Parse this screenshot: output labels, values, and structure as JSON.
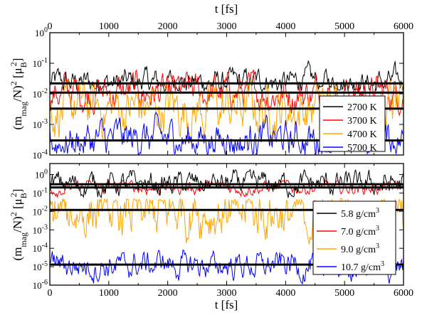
{
  "chart_data": [
    {
      "type": "line",
      "x_top_label": "t [fs]",
      "ylabel_parts": {
        "a": "(m",
        "a_sub": "mag",
        "b": "/N)",
        "b_sup": "2",
        "c": " [μ",
        "c_sub": "B",
        "c_sup": "2",
        "d": "]"
      },
      "xlim": [
        0,
        6000
      ],
      "x_ticks": [
        "0",
        "1000",
        "2000",
        "3000",
        "4000",
        "5000",
        "6000"
      ],
      "y_scale": "log",
      "ylim_exp": [
        -4,
        0
      ],
      "y_ticks": [
        {
          "base": "10",
          "exp": "-4"
        },
        {
          "base": "10",
          "exp": "-3"
        },
        {
          "base": "10",
          "exp": "-2"
        },
        {
          "base": "10",
          "exp": "-1"
        },
        {
          "base": "10",
          "exp": "0"
        }
      ],
      "legend_position": "right",
      "series": [
        {
          "name": "2700 K",
          "color": "#000000",
          "mean": 0.022,
          "noise_low": 0.012,
          "noise_high": 0.15,
          "draw_order": 1
        },
        {
          "name": "3700 K",
          "color": "#ff0000",
          "mean": 0.011,
          "noise_low": 0.002,
          "noise_high": 0.06,
          "draw_order": 2
        },
        {
          "name": "4700 K",
          "color": "#ffa500",
          "mean": 0.0033,
          "noise_low": 0.0002,
          "noise_high": 0.03,
          "draw_order": 3
        },
        {
          "name": "5700 K",
          "color": "#0000ff",
          "mean": 0.0003,
          "noise_low": 0.0001,
          "noise_high": 0.004,
          "draw_order": 4
        }
      ]
    },
    {
      "type": "line",
      "xlabel": "t [fs]",
      "ylabel_parts": {
        "a": "(m",
        "a_sub": "mag",
        "b": "/N)",
        "b_sup": "2",
        "c": " [μ",
        "c_sub": "B",
        "c_sup": "2",
        "d": "]"
      },
      "xlim": [
        0,
        6000
      ],
      "x_ticks": [
        "0",
        "1000",
        "2000",
        "3000",
        "4000",
        "5000",
        "6000"
      ],
      "y_scale": "log",
      "ylim_exp": [
        -6,
        0.6
      ],
      "y_ticks": [
        {
          "base": "10",
          "exp": "-6"
        },
        {
          "base": "10",
          "exp": "-5"
        },
        {
          "base": "10",
          "exp": "-4"
        },
        {
          "base": "10",
          "exp": "-3"
        },
        {
          "base": "10",
          "exp": "-2"
        },
        {
          "base": "10",
          "exp": "-1"
        },
        {
          "base": "10",
          "exp": "0"
        }
      ],
      "legend_position": "right",
      "series": [
        {
          "name_base": "5.8 g/cm",
          "name_sup": "3",
          "color": "#000000",
          "mean": 0.3,
          "noise_low": 0.05,
          "noise_high": 2.0,
          "draw_order": 2
        },
        {
          "name_base": "7.0 g/cm",
          "name_sup": "3",
          "color": "#ff0000",
          "mean": 0.2,
          "noise_low": 0.06,
          "noise_high": 0.5,
          "draw_order": 1
        },
        {
          "name_base": "9.0 g/cm",
          "name_sup": "3",
          "color": "#ffa500",
          "mean": 0.012,
          "noise_low": 1e-05,
          "noise_high": 0.05,
          "draw_order": 3
        },
        {
          "name_base": "10.7 g/cm",
          "name_sup": "3",
          "color": "#0000ff",
          "mean": 1.3e-05,
          "noise_low": 1e-06,
          "noise_high": 8e-05,
          "draw_order": 4
        }
      ]
    }
  ]
}
